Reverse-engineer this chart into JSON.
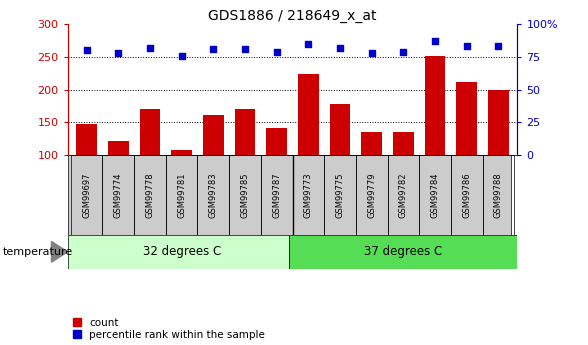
{
  "title": "GDS1886 / 218649_x_at",
  "samples": [
    "GSM99697",
    "GSM99774",
    "GSM99778",
    "GSM99781",
    "GSM99783",
    "GSM99785",
    "GSM99787",
    "GSM99773",
    "GSM99775",
    "GSM99779",
    "GSM99782",
    "GSM99784",
    "GSM99786",
    "GSM99788"
  ],
  "counts": [
    148,
    122,
    170,
    108,
    161,
    170,
    142,
    224,
    178,
    135,
    135,
    252,
    211,
    200
  ],
  "percentiles": [
    80,
    78,
    82,
    76,
    81,
    81,
    79,
    85,
    82,
    78,
    79,
    87,
    83,
    83
  ],
  "group1_label": "32 degrees C",
  "group2_label": "37 degrees C",
  "group1_count": 7,
  "group2_count": 7,
  "bar_color": "#cc0000",
  "dot_color": "#0000cc",
  "group1_bg": "#ccffcc",
  "group2_bg": "#55dd55",
  "sample_bg": "#cccccc",
  "ylim_left": [
    100,
    300
  ],
  "ylim_right": [
    0,
    100
  ],
  "yticks_left": [
    100,
    150,
    200,
    250,
    300
  ],
  "yticks_right": [
    0,
    25,
    50,
    75,
    100
  ],
  "hlines": [
    150,
    200,
    250
  ],
  "legend_count_label": "count",
  "legend_pct_label": "percentile rank within the sample",
  "temperature_label": "temperature"
}
